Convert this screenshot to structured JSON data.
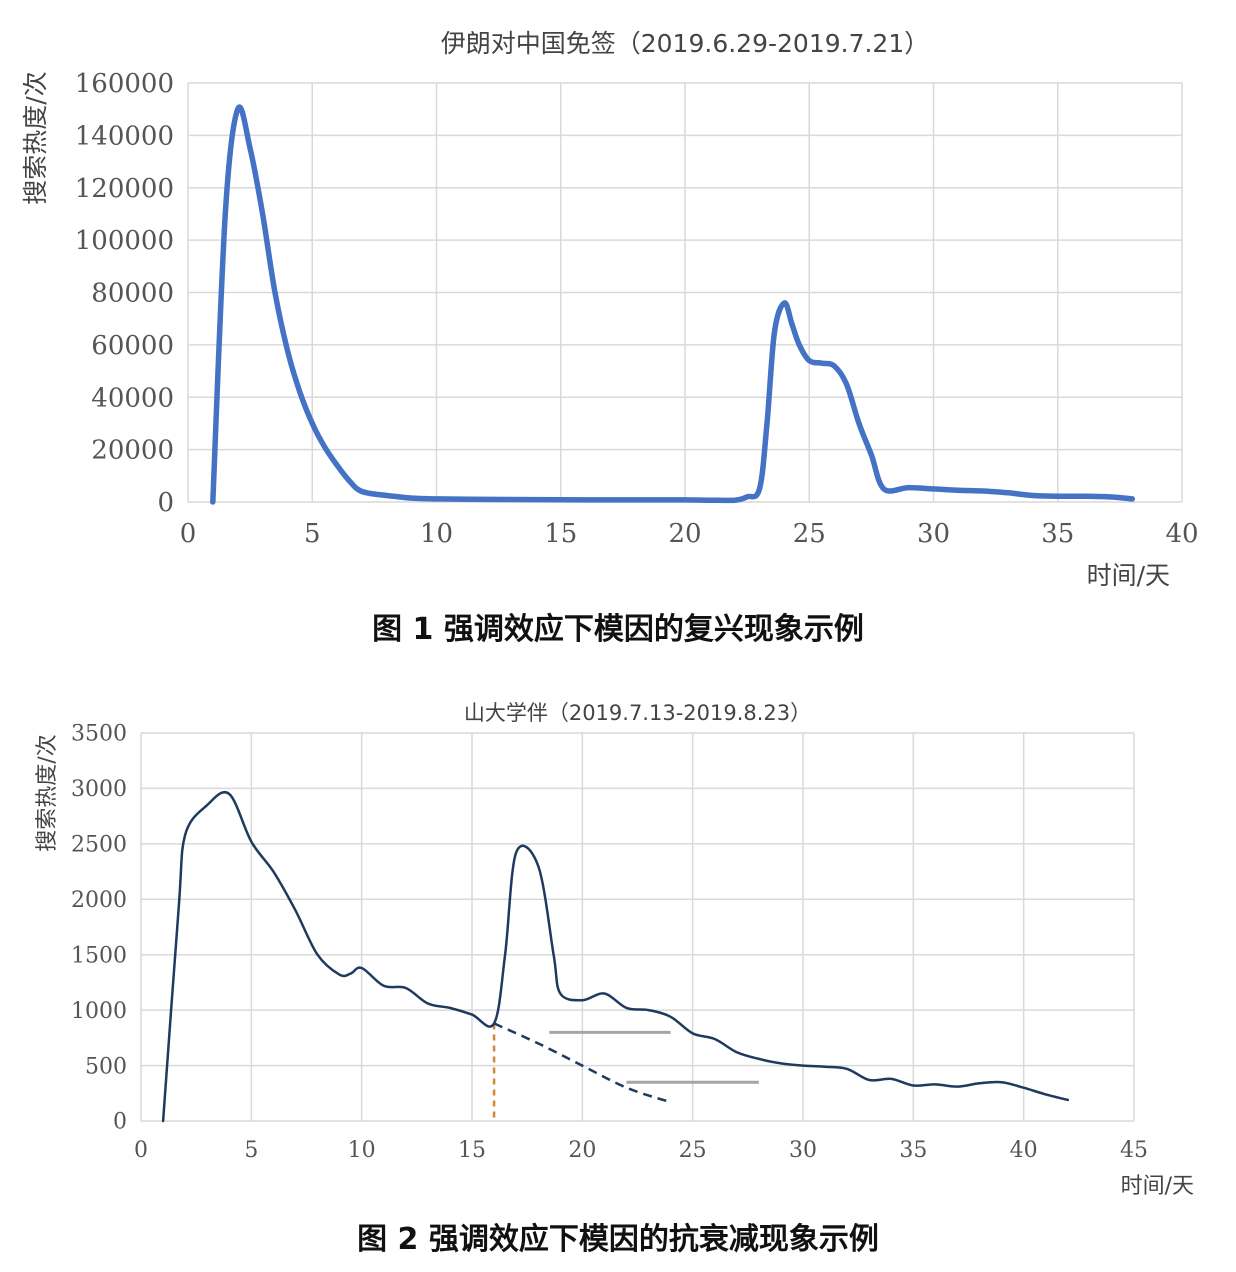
{
  "charts": [
    {
      "title": "伊朗对中国免签（2019.6.29-2019.7.21）",
      "ylabel": "搜索热度/次",
      "xlabel": "时间/天",
      "caption": "图 1   强调效应下模因的复兴现象示例"
    },
    {
      "title": "山大学伴（2019.7.13-2019.8.23）",
      "ylabel": "搜索热度/次",
      "xlabel": "时间/天",
      "caption": "图 2   强调效应下模因的抗衰减现象示例"
    }
  ],
  "chart_data": [
    {
      "type": "line",
      "title": "伊朗对中国免签（2019.6.29-2019.7.21）",
      "xlabel": "时间/天",
      "ylabel": "搜索热度/次",
      "xlim": [
        0,
        40
      ],
      "ylim": [
        0,
        160000
      ],
      "xticks": [
        0,
        5,
        10,
        15,
        20,
        25,
        30,
        35,
        40
      ],
      "yticks": [
        0,
        20000,
        40000,
        60000,
        80000,
        100000,
        120000,
        140000,
        160000
      ],
      "grid": true,
      "line_color": "#4472C4",
      "series": [
        {
          "x": [
            1,
            1.5,
            2,
            2.5,
            3,
            3.5,
            4,
            4.5,
            5,
            5.5,
            6,
            6.5,
            7,
            8,
            9,
            10,
            12,
            14,
            16,
            18,
            20,
            21,
            22,
            22.5,
            23,
            23.3,
            23.6,
            24,
            24.3,
            24.6,
            25,
            25.5,
            26,
            26.5,
            27,
            27.5,
            28,
            29,
            30,
            31,
            32,
            33,
            34,
            35,
            36,
            37,
            38
          ],
          "y": [
            0,
            110000,
            150000,
            135000,
            110000,
            80000,
            58000,
            42000,
            30000,
            21000,
            14000,
            8000,
            4000,
            2500,
            1500,
            1200,
            1000,
            900,
            800,
            800,
            800,
            700,
            700,
            2000,
            5000,
            30000,
            65000,
            76000,
            68000,
            60000,
            54000,
            53000,
            52000,
            45000,
            30000,
            18000,
            5000,
            5500,
            5000,
            4500,
            4200,
            3500,
            2500,
            2200,
            2200,
            2000,
            1200
          ]
        }
      ]
    },
    {
      "type": "line",
      "title": "山大学伴（2019.7.13-2019.8.23）",
      "xlabel": "时间/天",
      "ylabel": "搜索热度/次",
      "xlim": [
        0,
        45
      ],
      "ylim": [
        0,
        3500
      ],
      "xticks": [
        0,
        5,
        10,
        15,
        20,
        25,
        30,
        35,
        40,
        45
      ],
      "yticks": [
        0,
        500,
        1000,
        1500,
        2000,
        2500,
        3000,
        3500
      ],
      "grid": true,
      "line_color": "#1f3a5f",
      "series": [
        {
          "x": [
            1,
            1.7,
            2,
            3,
            4,
            5,
            6,
            7,
            8,
            9,
            9.5,
            10,
            11,
            12,
            13,
            14,
            15,
            16,
            16.5,
            17,
            18,
            18.7,
            19,
            20,
            21,
            22,
            23,
            24,
            25,
            26,
            27,
            28,
            29,
            30,
            31,
            32,
            33,
            34,
            35,
            36,
            37,
            38,
            39,
            40,
            41,
            42
          ],
          "y": [
            0,
            1900,
            2580,
            2850,
            2950,
            2520,
            2250,
            1900,
            1500,
            1320,
            1330,
            1380,
            1220,
            1200,
            1060,
            1020,
            960,
            880,
            1500,
            2420,
            2300,
            1500,
            1150,
            1090,
            1150,
            1020,
            1000,
            940,
            790,
            740,
            620,
            560,
            520,
            500,
            490,
            470,
            370,
            380,
            320,
            330,
            310,
            340,
            350,
            300,
            240,
            190
          ]
        }
      ],
      "annotations": {
        "dashed_decay": {
          "x": [
            16,
            18,
            20,
            22,
            24
          ],
          "y": [
            880,
            700,
            500,
            300,
            170
          ],
          "color": "#1f3a5f"
        },
        "vertical_marker": {
          "x": 16,
          "y_top": 880,
          "color": "#d4883a"
        },
        "ref_lines": [
          {
            "x1": 18.5,
            "x2": 24,
            "y": 800,
            "color": "#a6a6a6"
          },
          {
            "x1": 22,
            "x2": 28,
            "y": 350,
            "color": "#a6a6a6"
          }
        ]
      }
    }
  ]
}
